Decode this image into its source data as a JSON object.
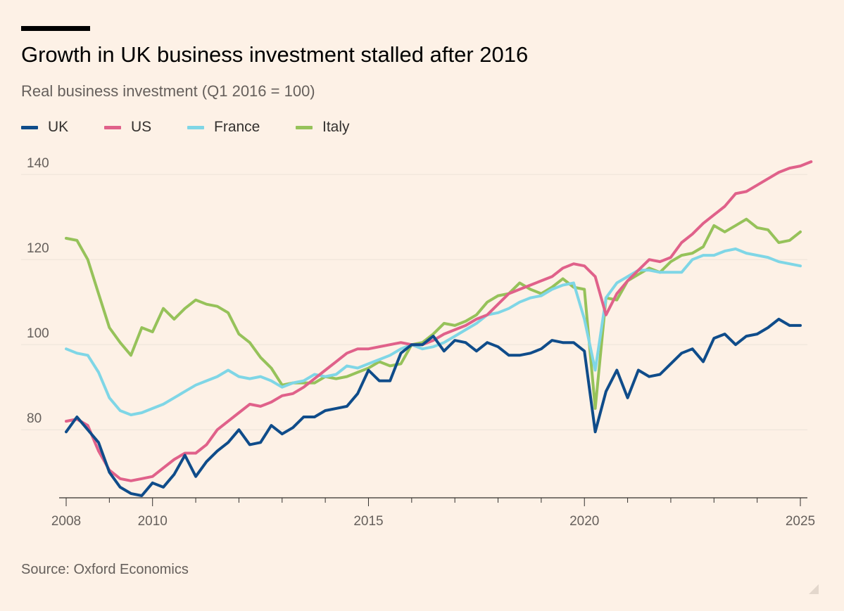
{
  "header": {
    "title": "Growth in UK business investment stalled after 2016",
    "subtitle": "Real business investment (Q1 2016 = 100)"
  },
  "footer": {
    "source": "Source: Oxford Economics"
  },
  "colors": {
    "background": "#fdf1e6",
    "uk": "#0f4c8a",
    "us": "#e0618a",
    "france": "#7fd6e6",
    "italy": "#96c25a",
    "gridline": "#ece2d8",
    "axis": "#33302e",
    "tick_label": "#66605c"
  },
  "chart_data": {
    "type": "line",
    "title": "Growth in UK business investment stalled after 2016",
    "subtitle": "Real business investment (Q1 2016 = 100)",
    "xlabel": "",
    "ylabel": "",
    "x_frequency": "quarterly",
    "x_start": "2008 Q1",
    "x_end": "2025 Q1",
    "xlim": [
      2008,
      2025
    ],
    "ylim": [
      64,
      143
    ],
    "x_ticks": [
      2008,
      2010,
      2015,
      2020,
      2025
    ],
    "y_ticks": [
      80,
      100,
      120,
      140
    ],
    "grid": "horizontal",
    "legend_position": "top-left",
    "series": [
      {
        "name": "UK",
        "color": "#0f4c8a",
        "values": [
          79.5,
          83,
          80,
          77,
          70,
          66.5,
          65,
          64.5,
          67.5,
          66.5,
          69.5,
          74,
          69,
          72.5,
          75,
          77,
          80,
          76.5,
          77,
          81,
          79,
          80.5,
          83,
          83,
          84.5,
          85,
          85.5,
          88.5,
          94,
          91.5,
          91.5,
          98,
          100,
          100,
          102,
          98.5,
          101,
          100.5,
          98.5,
          100.5,
          99.5,
          97.5,
          97.5,
          98,
          99,
          101,
          100.5,
          100.5,
          98.5,
          79.5,
          89,
          94,
          87.5,
          94,
          92.5,
          93,
          95.5,
          98,
          99,
          96,
          101.5,
          102.5,
          100,
          102,
          102.5,
          104,
          106,
          104.5,
          104.5
        ]
      },
      {
        "name": "US",
        "color": "#e0618a",
        "values": [
          82,
          82.5,
          81,
          75,
          70.5,
          68.5,
          68,
          68.5,
          69,
          71,
          73,
          74.5,
          74.5,
          76.5,
          80,
          82,
          84,
          86,
          85.5,
          86.5,
          88,
          88.5,
          90,
          92,
          94,
          96,
          98,
          99,
          99,
          99.5,
          100,
          100.5,
          100,
          100,
          101,
          102.5,
          103.5,
          104.5,
          106,
          107,
          109.5,
          112,
          113,
          114,
          115,
          116,
          118,
          119,
          118.5,
          116,
          107,
          112,
          115,
          117.5,
          120,
          119.5,
          120.5,
          124,
          126,
          128.5,
          130.5,
          132.5,
          135.5,
          136,
          137.5,
          139,
          140.5,
          141.5,
          142,
          143
        ]
      },
      {
        "name": "France",
        "color": "#7fd6e6",
        "values": [
          99,
          98,
          97.5,
          93.5,
          87.5,
          84.5,
          83.5,
          84,
          85,
          86,
          87.5,
          89,
          90.5,
          91.5,
          92.5,
          94,
          92.5,
          92,
          92.5,
          91.5,
          90,
          91,
          91.5,
          93,
          92.5,
          93,
          95,
          94.5,
          95.5,
          96.5,
          97.5,
          99,
          100,
          99,
          99.5,
          100.5,
          102,
          103.5,
          105,
          107,
          107.5,
          108.5,
          110,
          111,
          111.5,
          113,
          114,
          114.5,
          106,
          94,
          111,
          114.5,
          116,
          117.5,
          117.5,
          117,
          117,
          117,
          120,
          121,
          121,
          122,
          122.5,
          121.5,
          121,
          120.5,
          119.5,
          119,
          118.5
        ]
      },
      {
        "name": "Italy",
        "color": "#96c25a",
        "values": [
          125,
          124.5,
          120,
          112,
          104,
          100.5,
          97.5,
          104,
          103,
          108.5,
          106,
          108.5,
          110.5,
          109.5,
          109,
          107.5,
          102.5,
          100.5,
          97,
          94.5,
          90.5,
          91,
          91,
          91,
          92.5,
          92,
          92.5,
          93.5,
          94.5,
          96,
          95,
          95.5,
          100,
          100.5,
          102.5,
          105,
          104.5,
          105.5,
          107,
          110,
          111.5,
          112,
          114.5,
          113,
          112,
          113.5,
          115.5,
          113.5,
          113,
          85,
          111,
          110.5,
          115,
          116.5,
          118,
          117,
          119.5,
          121,
          121.5,
          123,
          128,
          126.5,
          128,
          129.5,
          127.5,
          127,
          124,
          124.5,
          126.5
        ]
      }
    ]
  }
}
